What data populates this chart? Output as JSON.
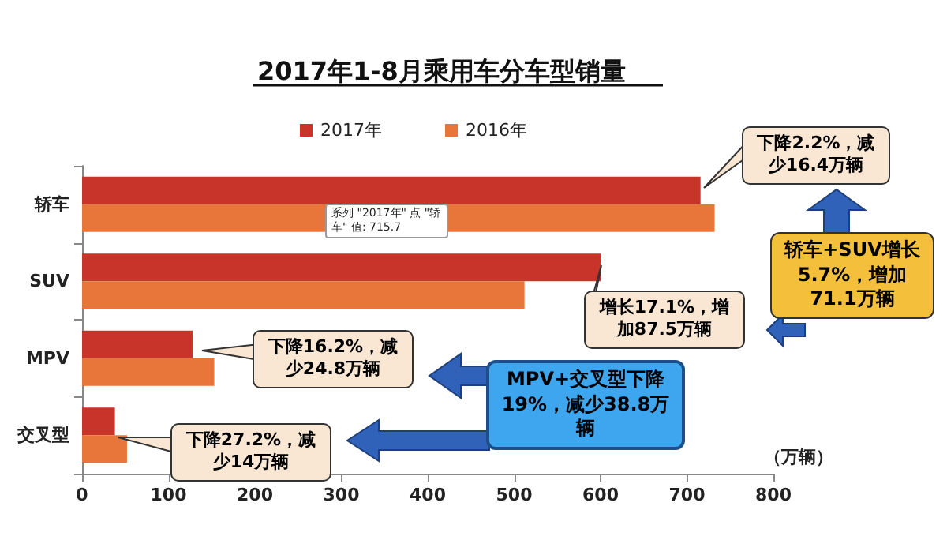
{
  "chart_data": {
    "type": "bar",
    "orientation": "horizontal",
    "title": "2017年1-8月乘用车分车型销量",
    "xlabel": "（万辆）",
    "categories": [
      "轿车",
      "SUV",
      "MPV",
      "交叉型"
    ],
    "series": [
      {
        "name": "2017年",
        "color": "#c9342a",
        "values": [
          715.7,
          600,
          128,
          38
        ]
      },
      {
        "name": "2016年",
        "color": "#e8763a",
        "values": [
          732,
          512,
          153,
          52
        ]
      }
    ],
    "xlim": [
      0,
      800
    ],
    "xticks": [
      0,
      100,
      200,
      300,
      400,
      500,
      600,
      700,
      800
    ],
    "grid": false,
    "legend": "top",
    "annotations": [
      "下降2.2%，减少16.4万辆",
      "轿车+SUV增长5.7%，增加71.1万辆",
      "增长17.1%，增加87.5万辆",
      "下降16.2%，减少24.8万辆",
      "MPV+交叉型下降19%，减少38.8万辆",
      "下降27.2%，减少14万辆",
      "系列 \"2017年\" 点 \"轿车\" 值: 715.7"
    ]
  }
}
